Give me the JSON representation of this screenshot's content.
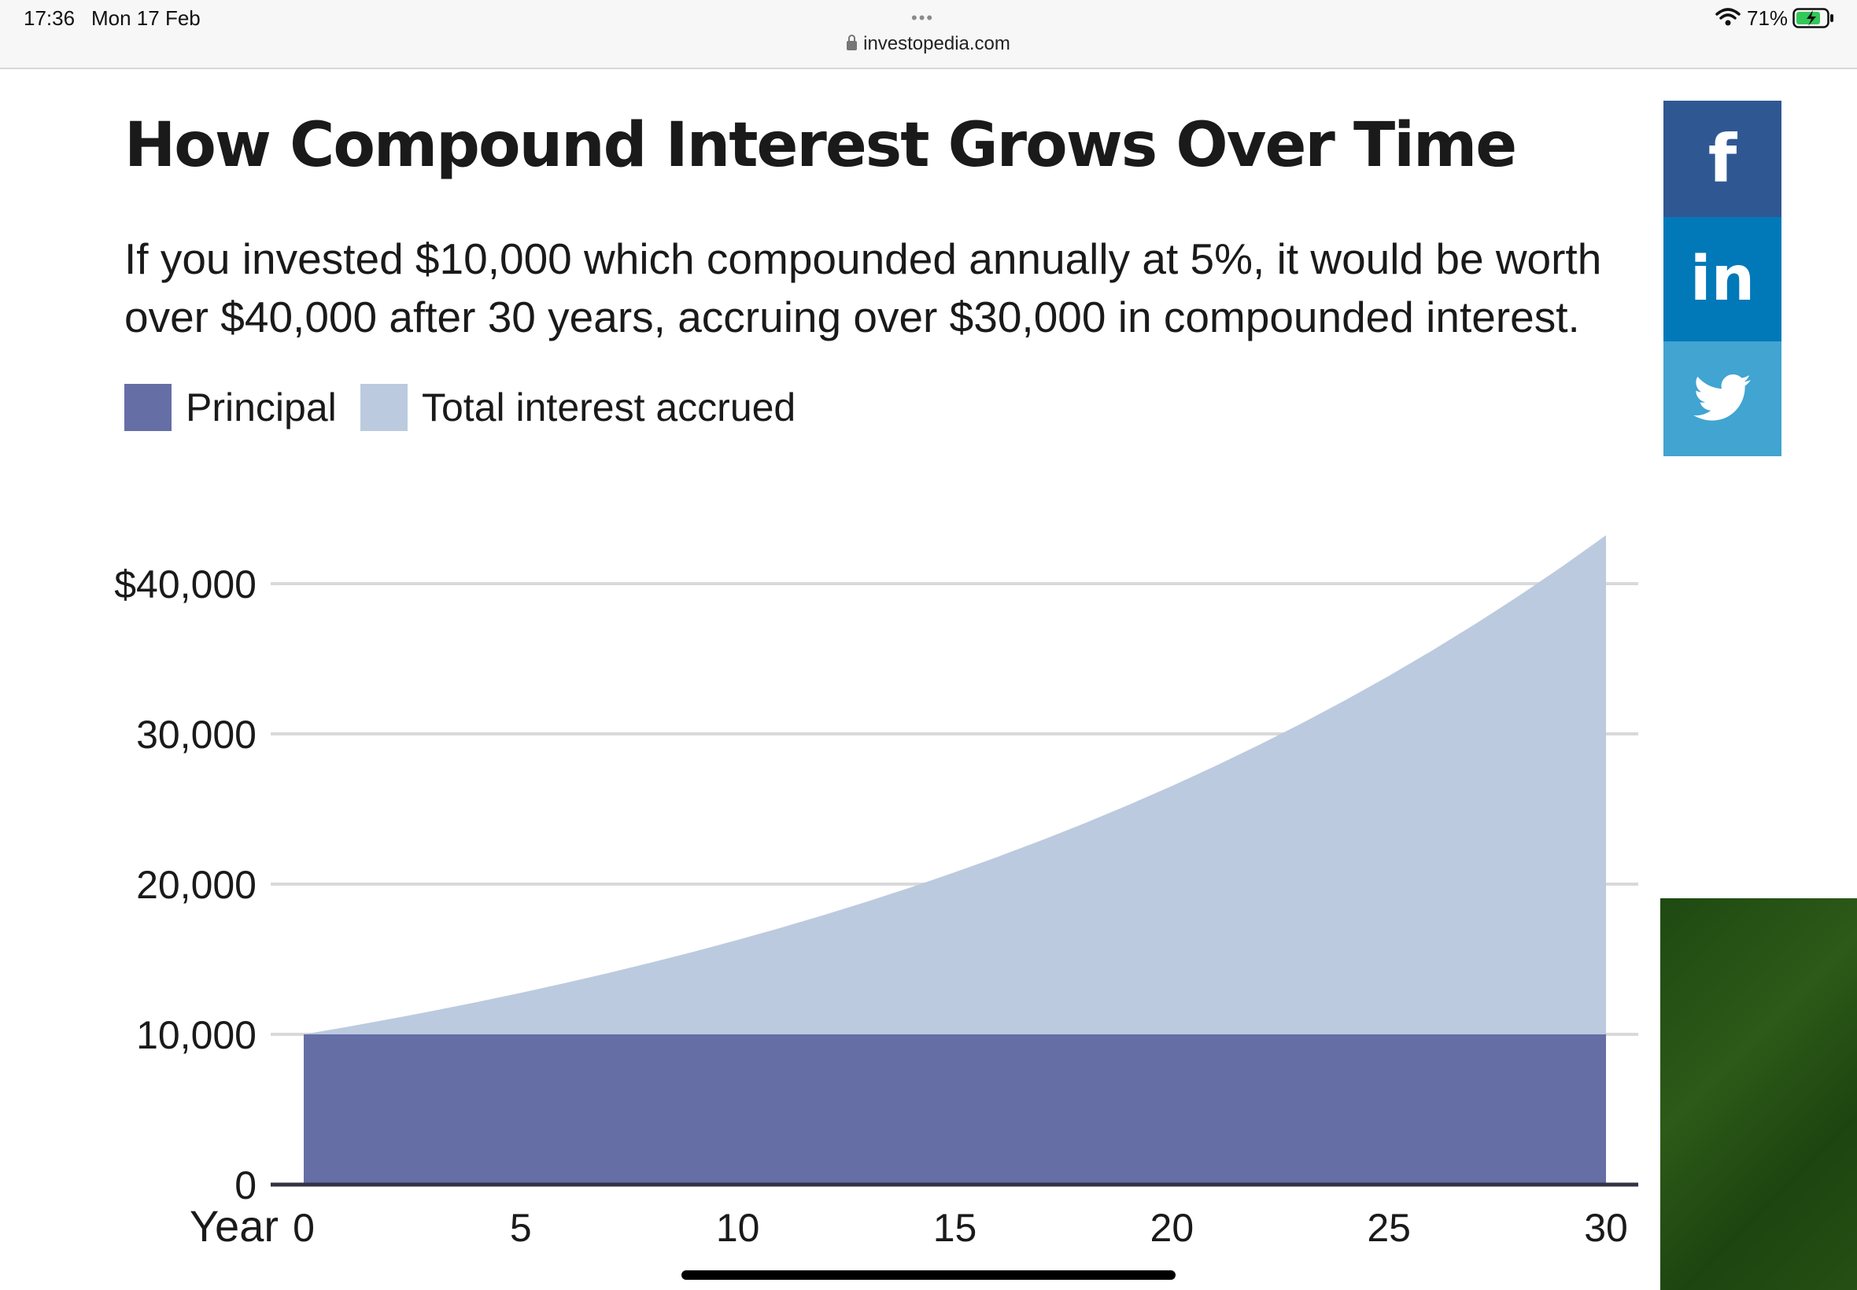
{
  "status": {
    "time": "17:36",
    "date": "Mon 17 Feb",
    "battery": "71%",
    "dots": "•••"
  },
  "browser": {
    "url": "investopedia.com"
  },
  "article": {
    "title": "How Compound Interest Grows Over Time",
    "subtitle": "If you invested $10,000 which compounded annually at 5%, it would be worth over $40,000 after 30 years, accruing over $30,000 in compounded interest."
  },
  "social": {
    "facebook": "f",
    "linkedin": "in",
    "twitter_icon": "twitter-bird-icon"
  },
  "colors": {
    "principal": "#666ea6",
    "interest": "#bbcadf",
    "facebook": "#2f5893",
    "linkedin": "#0179b8",
    "twitter": "#41a4d1"
  },
  "chart_data": {
    "type": "area",
    "x_label": "Year",
    "x": [
      0,
      1,
      2,
      3,
      4,
      5,
      6,
      7,
      8,
      9,
      10,
      11,
      12,
      13,
      14,
      15,
      16,
      17,
      18,
      19,
      20,
      21,
      22,
      23,
      24,
      25,
      26,
      27,
      28,
      29,
      30
    ],
    "x_ticks": [
      "0",
      "5",
      "10",
      "15",
      "20",
      "25",
      "30"
    ],
    "x_tick_values": [
      0,
      5,
      10,
      15,
      20,
      25,
      30
    ],
    "y_ticks": [
      "$40,000",
      "30,000",
      "20,000",
      "10,000",
      "0"
    ],
    "y_tick_values": [
      40000,
      30000,
      20000,
      10000,
      0
    ],
    "ylim": [
      0,
      40000
    ],
    "xlim": [
      0,
      30
    ],
    "grid": true,
    "legend_position": "top-left",
    "series": [
      {
        "name": "Principal",
        "values": [
          10000,
          10000,
          10000,
          10000,
          10000,
          10000,
          10000,
          10000,
          10000,
          10000,
          10000,
          10000,
          10000,
          10000,
          10000,
          10000,
          10000,
          10000,
          10000,
          10000,
          10000,
          10000,
          10000,
          10000,
          10000,
          10000,
          10000,
          10000,
          10000,
          10000,
          10000
        ]
      },
      {
        "name": "Total interest accrued",
        "values": [
          0,
          500,
          1025,
          1576,
          2155,
          2763,
          3401,
          4071,
          4775,
          5513,
          6289,
          7103,
          7959,
          8856,
          9799,
          10789,
          11829,
          12920,
          14066,
          15270,
          16533,
          17860,
          19253,
          20715,
          22251,
          23864,
          25557,
          27335,
          29201,
          31161,
          33219
        ]
      }
    ]
  }
}
